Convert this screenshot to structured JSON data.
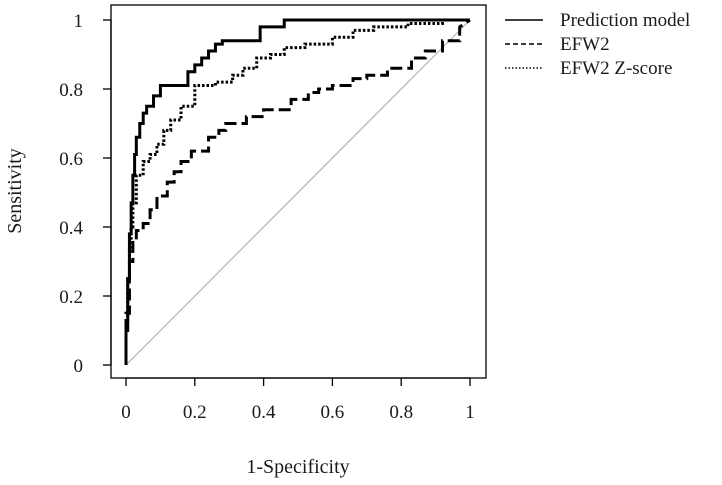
{
  "chart_data": {
    "type": "line",
    "title": "",
    "xlabel": "1-Specificity",
    "ylabel": "Sensitivity",
    "xlim": [
      0,
      1
    ],
    "ylim": [
      0,
      1
    ],
    "x_ticks": [
      0,
      0.2,
      0.4,
      0.6,
      0.8,
      1
    ],
    "x_tick_labels": [
      "0",
      "0.2",
      "0.4",
      "0.6",
      "0.8",
      "1"
    ],
    "y_ticks": [
      0,
      0.2,
      0.4,
      0.6,
      0.8,
      1
    ],
    "y_tick_labels": [
      "0",
      "0.2",
      "0.4",
      "0.6",
      "0.8",
      "1"
    ],
    "grid": false,
    "legend_position": "outside-top-right",
    "reference_line": {
      "x": [
        0,
        1
      ],
      "y": [
        0,
        1
      ],
      "color": "#b4b4b4"
    },
    "series": [
      {
        "name": "Prediction model",
        "style": "solid",
        "color": "#000000",
        "x": [
          0,
          0,
          0.005,
          0.005,
          0.01,
          0.01,
          0.015,
          0.015,
          0.02,
          0.02,
          0.025,
          0.025,
          0.03,
          0.03,
          0.04,
          0.04,
          0.05,
          0.05,
          0.06,
          0.06,
          0.08,
          0.08,
          0.1,
          0.1,
          0.18,
          0.18,
          0.2,
          0.2,
          0.22,
          0.22,
          0.24,
          0.24,
          0.26,
          0.26,
          0.28,
          0.28,
          0.39,
          0.39,
          0.46,
          0.46,
          1
        ],
        "y": [
          0,
          0.1,
          0.1,
          0.25,
          0.25,
          0.38,
          0.38,
          0.47,
          0.47,
          0.55,
          0.55,
          0.61,
          0.61,
          0.66,
          0.66,
          0.7,
          0.7,
          0.73,
          0.73,
          0.75,
          0.75,
          0.78,
          0.78,
          0.81,
          0.81,
          0.85,
          0.85,
          0.87,
          0.87,
          0.89,
          0.89,
          0.91,
          0.91,
          0.93,
          0.93,
          0.94,
          0.94,
          0.98,
          0.98,
          1,
          1
        ]
      },
      {
        "name": "EFW2",
        "style": "dashed",
        "color": "#000000",
        "x": [
          0,
          0,
          0.01,
          0.01,
          0.02,
          0.02,
          0.03,
          0.03,
          0.05,
          0.05,
          0.07,
          0.07,
          0.09,
          0.09,
          0.12,
          0.12,
          0.14,
          0.14,
          0.16,
          0.16,
          0.19,
          0.19,
          0.24,
          0.24,
          0.27,
          0.27,
          0.29,
          0.29,
          0.35,
          0.35,
          0.4,
          0.4,
          0.48,
          0.48,
          0.53,
          0.53,
          0.56,
          0.56,
          0.6,
          0.6,
          0.66,
          0.66,
          0.7,
          0.7,
          0.76,
          0.76,
          0.83,
          0.83,
          0.87,
          0.87,
          0.92,
          0.92,
          0.97,
          0.97,
          1
        ],
        "y": [
          0,
          0.15,
          0.15,
          0.3,
          0.3,
          0.36,
          0.36,
          0.39,
          0.39,
          0.41,
          0.41,
          0.45,
          0.45,
          0.49,
          0.49,
          0.53,
          0.53,
          0.56,
          0.56,
          0.59,
          0.59,
          0.62,
          0.62,
          0.66,
          0.66,
          0.68,
          0.68,
          0.7,
          0.7,
          0.72,
          0.72,
          0.74,
          0.74,
          0.77,
          0.77,
          0.79,
          0.79,
          0.8,
          0.8,
          0.81,
          0.81,
          0.83,
          0.83,
          0.84,
          0.84,
          0.86,
          0.86,
          0.89,
          0.89,
          0.91,
          0.91,
          0.94,
          0.94,
          0.98,
          1
        ]
      },
      {
        "name": "EFW2 Z-score",
        "style": "dotted",
        "color": "#000000",
        "x": [
          0,
          0,
          0.005,
          0.005,
          0.01,
          0.01,
          0.015,
          0.015,
          0.02,
          0.02,
          0.03,
          0.03,
          0.05,
          0.05,
          0.07,
          0.07,
          0.09,
          0.09,
          0.11,
          0.11,
          0.13,
          0.13,
          0.16,
          0.16,
          0.2,
          0.2,
          0.26,
          0.26,
          0.31,
          0.31,
          0.34,
          0.34,
          0.38,
          0.38,
          0.42,
          0.42,
          0.46,
          0.46,
          0.52,
          0.52,
          0.6,
          0.6,
          0.66,
          0.66,
          0.72,
          0.72,
          0.82,
          0.82,
          0.92,
          0.92,
          1
        ],
        "y": [
          0,
          0.12,
          0.12,
          0.25,
          0.25,
          0.33,
          0.33,
          0.4,
          0.4,
          0.47,
          0.47,
          0.55,
          0.55,
          0.59,
          0.59,
          0.61,
          0.61,
          0.64,
          0.64,
          0.68,
          0.68,
          0.71,
          0.71,
          0.75,
          0.75,
          0.81,
          0.81,
          0.82,
          0.82,
          0.84,
          0.84,
          0.86,
          0.86,
          0.89,
          0.89,
          0.9,
          0.9,
          0.92,
          0.92,
          0.93,
          0.93,
          0.95,
          0.95,
          0.97,
          0.97,
          0.98,
          0.98,
          0.99,
          0.99,
          1,
          1
        ]
      }
    ]
  }
}
